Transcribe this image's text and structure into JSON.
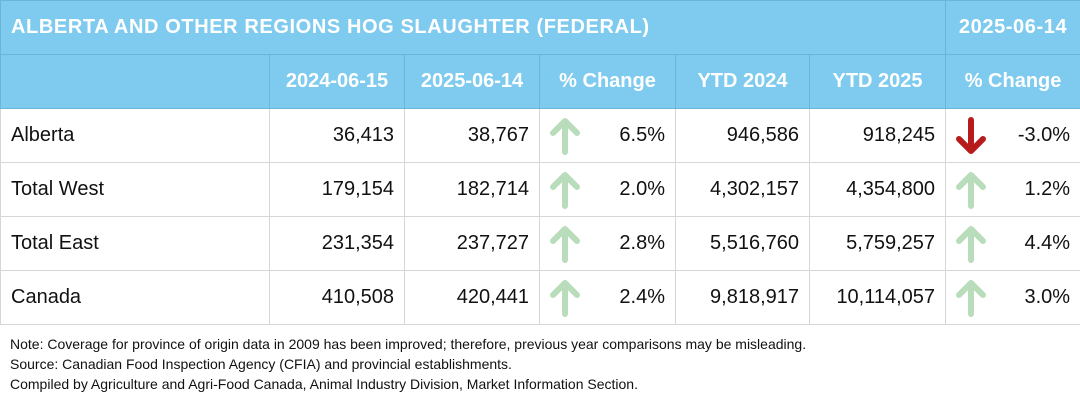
{
  "header": {
    "title": "ALBERTA AND OTHER REGIONS HOG SLAUGHTER (FEDERAL)",
    "date": "2025-06-14"
  },
  "columns": [
    "",
    "2024-06-15",
    "2025-06-14",
    "% Change",
    "YTD 2024",
    "YTD 2025",
    "% Change"
  ],
  "rows": [
    {
      "region": "Alberta",
      "wk_2024": "36,413",
      "wk_2025": "38,767",
      "wk_change": "6.5%",
      "wk_dir": "up",
      "ytd_2024": "946,586",
      "ytd_2025": "918,245",
      "ytd_change": "-3.0%",
      "ytd_dir": "down"
    },
    {
      "region": "Total West",
      "wk_2024": "179,154",
      "wk_2025": "182,714",
      "wk_change": "2.0%",
      "wk_dir": "up",
      "ytd_2024": "4,302,157",
      "ytd_2025": "4,354,800",
      "ytd_change": "1.2%",
      "ytd_dir": "up"
    },
    {
      "region": "Total East",
      "wk_2024": "231,354",
      "wk_2025": "237,727",
      "wk_change": "2.8%",
      "wk_dir": "up",
      "ytd_2024": "5,516,760",
      "ytd_2025": "5,759,257",
      "ytd_change": "4.4%",
      "ytd_dir": "up"
    },
    {
      "region": "Canada",
      "wk_2024": "410,508",
      "wk_2025": "420,441",
      "wk_change": "2.4%",
      "wk_dir": "up",
      "ytd_2024": "9,818,917",
      "ytd_2025": "10,114,057",
      "ytd_change": "3.0%",
      "ytd_dir": "up"
    }
  ],
  "notes": [
    "Note: Coverage for province of origin data in 2009 has been improved; therefore, previous year comparisons may be misleading.",
    "Source: Canadian Food Inspection Agency (CFIA) and provincial establishments.",
    "Compiled by Agriculture and Agri-Food Canada, Animal Industry Division, Market Information Section."
  ],
  "colors": {
    "header_bg": "#7ecbef",
    "header_text": "#ffffff",
    "arrow_up": "#b9dcbb",
    "arrow_down": "#b71c1c"
  },
  "icons": {
    "up": "arrow-up-icon",
    "down": "arrow-down-icon"
  }
}
